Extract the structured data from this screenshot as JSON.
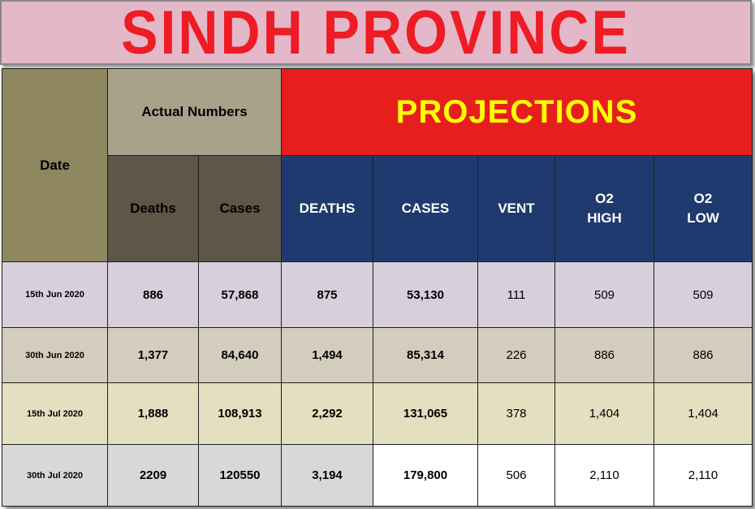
{
  "title": "SINDH PROVINCE",
  "header": {
    "date": "Date",
    "actual_numbers": "Actual Numbers",
    "projections": "PROJECTIONS",
    "actual_cols": [
      "Deaths",
      "Cases"
    ],
    "projection_cols": [
      "DEATHS",
      "CASES",
      "VENT",
      "O2\nHIGH",
      "O2\nLOW"
    ]
  },
  "rows": [
    {
      "date": "15th Jun 2020",
      "deaths": "886",
      "cases": "57,868",
      "p_deaths": "875",
      "p_cases": "53,130",
      "vent": "111",
      "o2_high": "509",
      "o2_low": "509"
    },
    {
      "date": "30th Jun 2020",
      "deaths": "1,377",
      "cases": "84,640",
      "p_deaths": "1,494",
      "p_cases": "85,314",
      "vent": "226",
      "o2_high": "886",
      "o2_low": "886"
    },
    {
      "date": "15th Jul 2020",
      "deaths": "1,888",
      "cases": "108,913",
      "p_deaths": "2,292",
      "p_cases": "131,065",
      "vent": "378",
      "o2_high": "1,404",
      "o2_low": "1,404"
    },
    {
      "date": "30th Jul 2020",
      "deaths": "2209",
      "cases": "120550",
      "p_deaths": "3,194",
      "p_cases": "179,800",
      "vent": "506",
      "o2_high": "2,110",
      "o2_low": "2,110"
    }
  ],
  "colors": {
    "title_text": "#ee1c24",
    "title_bg": "#e3b8c9",
    "projection_header_bg": "#e61e1e",
    "projection_header_text": "#ffff00",
    "projection_col_bg": "#1f3a6e",
    "actual_header_bg": "#a9a28a",
    "date_header_bg": "#8e8760"
  },
  "chart_data": {
    "type": "table",
    "title": "SINDH PROVINCE",
    "columns": [
      "Date",
      "Deaths",
      "Cases",
      "DEATHS",
      "CASES",
      "VENT",
      "O2 HIGH",
      "O2 LOW"
    ],
    "values": [
      [
        "15th Jun 2020",
        886,
        57868,
        875,
        53130,
        111,
        509,
        509
      ],
      [
        "30th Jun 2020",
        1377,
        84640,
        1494,
        85314,
        226,
        886,
        886
      ],
      [
        "15th Jul 2020",
        1888,
        108913,
        2292,
        131065,
        378,
        1404,
        1404
      ],
      [
        "30th Jul 2020",
        2209,
        120550,
        3194,
        179800,
        506,
        2110,
        2110
      ]
    ]
  }
}
